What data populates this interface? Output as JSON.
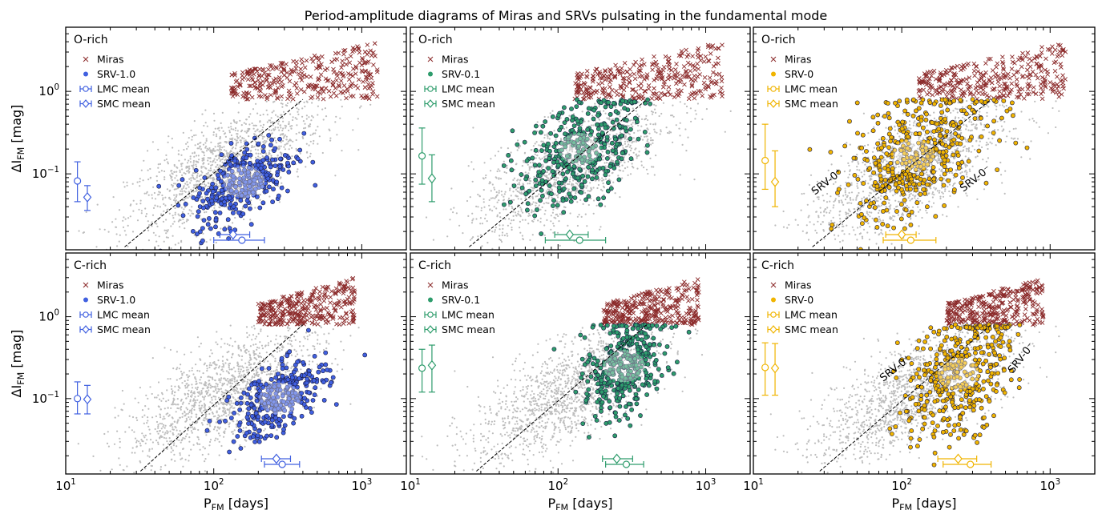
{
  "figure": {
    "title": "Period-amplitude diagrams of Miras and SRVs pulsating in the fundamental mode",
    "xlabel_main": "P",
    "xlabel_sub": "FM",
    "xlabel_unit": " [days]",
    "ylabel_main": "ΔI",
    "ylabel_sub": "FM",
    "ylabel_unit": " [mag]"
  },
  "colors": {
    "mira": "#8b2a2a",
    "background_stars": "#bdbdbd",
    "srv_1_0": "#4060e0",
    "srv_0_1": "#2e9c6c",
    "srv_0": "#f0b400",
    "trend_line": "#000000"
  },
  "chart_data": [
    {
      "type": "scatter",
      "row": "O-rich",
      "panel_label": "O-rich",
      "group": "SRV-1.0",
      "xscale": "log",
      "yscale": "log",
      "xlim": [
        10,
        2000
      ],
      "ylim": [
        0.012,
        6
      ],
      "xticks": [
        {
          "v": 10,
          "base": "10",
          "exp": "1"
        },
        {
          "v": 100,
          "base": "10",
          "exp": "2"
        },
        {
          "v": 1000,
          "base": "10",
          "exp": "3"
        }
      ],
      "yticks": [
        {
          "v": 0.1,
          "base": "10",
          "exp": "−1"
        },
        {
          "v": 1,
          "base": "10",
          "exp": "0"
        }
      ],
      "legend": [
        "Miras",
        "SRV-1.0",
        "LMC mean",
        "SMC mean"
      ],
      "mira_cloud": {
        "x_range": [
          130,
          1300
        ],
        "y_range": [
          0.8,
          4
        ]
      },
      "srv_cloud": {
        "center": [
          160,
          0.08
        ],
        "spread": [
          0.17,
          0.22
        ],
        "count": 330
      },
      "trend_line": [
        [
          25,
          0.013
        ],
        [
          400,
          0.8
        ]
      ],
      "lmc_mean": {
        "x": 155,
        "x_err": [
          100,
          220
        ],
        "y": 0.082,
        "y_err": [
          0.046,
          0.14
        ],
        "y_marker_x": 12
      },
      "smc_mean": {
        "x": 135,
        "x_err": [
          110,
          175
        ],
        "y": 0.052,
        "y_err": [
          0.036,
          0.072
        ],
        "y_marker_x": 14
      }
    },
    {
      "type": "scatter",
      "row": "O-rich",
      "panel_label": "O-rich",
      "group": "SRV-0.1",
      "xscale": "log",
      "yscale": "log",
      "xlim": [
        10,
        2000
      ],
      "ylim": [
        0.012,
        6
      ],
      "xticks": [
        {
          "v": 10,
          "base": "10",
          "exp": "1"
        },
        {
          "v": 100,
          "base": "10",
          "exp": "2"
        },
        {
          "v": 1000,
          "base": "10",
          "exp": "3"
        }
      ],
      "yticks": [
        {
          "v": 0.1,
          "base": "10",
          "exp": "−1"
        },
        {
          "v": 1,
          "base": "10",
          "exp": "0"
        }
      ],
      "legend": [
        "Miras",
        "SRV-0.1",
        "LMC mean",
        "SMC mean"
      ],
      "mira_cloud": {
        "x_range": [
          130,
          1300
        ],
        "y_range": [
          0.8,
          4
        ]
      },
      "srv_cloud": {
        "center": [
          140,
          0.2
        ],
        "spread": [
          0.2,
          0.32
        ],
        "count": 380
      },
      "trend_line": [
        [
          25,
          0.013
        ],
        [
          400,
          0.8
        ]
      ],
      "lmc_mean": {
        "x": 140,
        "x_err": [
          82,
          210
        ],
        "y": 0.165,
        "y_err": [
          0.075,
          0.36
        ],
        "y_marker_x": 12
      },
      "smc_mean": {
        "x": 120,
        "x_err": [
          95,
          160
        ],
        "y": 0.088,
        "y_err": [
          0.046,
          0.17
        ],
        "y_marker_x": 14
      }
    },
    {
      "type": "scatter",
      "row": "O-rich",
      "panel_label": "O-rich",
      "group": "SRV-0",
      "xscale": "log",
      "yscale": "log",
      "xlim": [
        10,
        2000
      ],
      "ylim": [
        0.012,
        6
      ],
      "xticks": [
        {
          "v": 10,
          "base": "10",
          "exp": "1"
        },
        {
          "v": 100,
          "base": "10",
          "exp": "2"
        },
        {
          "v": 1000,
          "base": "10",
          "exp": "3"
        }
      ],
      "yticks": [
        {
          "v": 0.1,
          "base": "10",
          "exp": "−1"
        },
        {
          "v": 1,
          "base": "10",
          "exp": "0"
        }
      ],
      "legend": [
        "Miras",
        "SRV-0",
        "LMC mean",
        "SMC mean"
      ],
      "mira_cloud": {
        "x_range": [
          130,
          1300
        ],
        "y_range": [
          0.8,
          4
        ]
      },
      "srv_cloud": {
        "center": [
          120,
          0.17
        ],
        "spread": [
          0.24,
          0.35
        ],
        "count": 450
      },
      "trend_line": [
        [
          25,
          0.013
        ],
        [
          400,
          0.8
        ]
      ],
      "annotations": [
        {
          "text": "SRV-0⁺",
          "x": 26,
          "y": 0.055,
          "angle": -38
        },
        {
          "text": "SRV-0⁻",
          "x": 260,
          "y": 0.06,
          "angle": -38
        }
      ],
      "lmc_mean": {
        "x": 115,
        "x_err": [
          75,
          170
        ],
        "y": 0.145,
        "y_err": [
          0.065,
          0.4
        ],
        "y_marker_x": 12
      },
      "smc_mean": {
        "x": 100,
        "x_err": [
          78,
          125
        ],
        "y": 0.08,
        "y_err": [
          0.04,
          0.19
        ],
        "y_marker_x": 14
      }
    },
    {
      "type": "scatter",
      "row": "C-rich",
      "panel_label": "C-rich",
      "group": "SRV-1.0",
      "xscale": "log",
      "yscale": "log",
      "xlim": [
        10,
        2000
      ],
      "ylim": [
        0.012,
        6
      ],
      "xticks": [
        {
          "v": 10,
          "base": "10",
          "exp": "1"
        },
        {
          "v": 100,
          "base": "10",
          "exp": "2"
        },
        {
          "v": 1000,
          "base": "10",
          "exp": "3"
        }
      ],
      "yticks": [
        {
          "v": 0.1,
          "base": "10",
          "exp": "−1"
        },
        {
          "v": 1,
          "base": "10",
          "exp": "0"
        }
      ],
      "legend": [
        "Miras",
        "SRV-1.0",
        "LMC mean",
        "SMC mean"
      ],
      "mira_cloud": {
        "x_range": [
          200,
          900
        ],
        "y_range": [
          0.8,
          3
        ]
      },
      "srv_cloud": {
        "center": [
          280,
          0.1
        ],
        "spread": [
          0.16,
          0.2
        ],
        "count": 330
      },
      "trend_line": [
        [
          32,
          0.013
        ],
        [
          400,
          0.8
        ]
      ],
      "lmc_mean": {
        "x": 290,
        "x_err": [
          220,
          380
        ],
        "y": 0.1,
        "y_err": [
          0.065,
          0.16
        ],
        "y_marker_x": 12
      },
      "smc_mean": {
        "x": 265,
        "x_err": [
          210,
          330
        ],
        "y": 0.098,
        "y_err": [
          0.065,
          0.145
        ],
        "y_marker_x": 14
      }
    },
    {
      "type": "scatter",
      "row": "C-rich",
      "panel_label": "C-rich",
      "group": "SRV-0.1",
      "xscale": "log",
      "yscale": "log",
      "xlim": [
        10,
        2000
      ],
      "ylim": [
        0.012,
        6
      ],
      "xticks": [
        {
          "v": 10,
          "base": "10",
          "exp": "1"
        },
        {
          "v": 100,
          "base": "10",
          "exp": "2"
        },
        {
          "v": 1000,
          "base": "10",
          "exp": "3"
        }
      ],
      "yticks": [
        {
          "v": 0.1,
          "base": "10",
          "exp": "−1"
        },
        {
          "v": 1,
          "base": "10",
          "exp": "0"
        }
      ],
      "legend": [
        "Miras",
        "SRV-0.1",
        "LMC mean",
        "SMC mean"
      ],
      "mira_cloud": {
        "x_range": [
          200,
          900
        ],
        "y_range": [
          0.8,
          3
        ]
      },
      "srv_cloud": {
        "center": [
          280,
          0.25
        ],
        "spread": [
          0.14,
          0.3
        ],
        "count": 380
      },
      "trend_line": [
        [
          28,
          0.013
        ],
        [
          400,
          0.8
        ]
      ],
      "lmc_mean": {
        "x": 290,
        "x_err": [
          210,
          380
        ],
        "y": 0.235,
        "y_err": [
          0.12,
          0.4
        ],
        "y_marker_x": 12
      },
      "smc_mean": {
        "x": 250,
        "x_err": [
          200,
          320
        ],
        "y": 0.255,
        "y_err": [
          0.12,
          0.45
        ],
        "y_marker_x": 14
      }
    },
    {
      "type": "scatter",
      "row": "C-rich",
      "panel_label": "C-rich",
      "group": "SRV-0",
      "xscale": "log",
      "yscale": "log",
      "xlim": [
        10,
        2000
      ],
      "ylim": [
        0.012,
        6
      ],
      "xticks": [
        {
          "v": 10,
          "base": "10",
          "exp": "1"
        },
        {
          "v": 100,
          "base": "10",
          "exp": "2"
        },
        {
          "v": 1000,
          "base": "10",
          "exp": "3"
        }
      ],
      "yticks": [
        {
          "v": 0.1,
          "base": "10",
          "exp": "−1"
        },
        {
          "v": 1,
          "base": "10",
          "exp": "0"
        }
      ],
      "legend": [
        "Miras",
        "SRV-0",
        "LMC mean",
        "SMC mean"
      ],
      "mira_cloud": {
        "x_range": [
          200,
          900
        ],
        "y_range": [
          0.8,
          3
        ]
      },
      "srv_cloud": {
        "center": [
          240,
          0.2
        ],
        "spread": [
          0.18,
          0.38
        ],
        "count": 420
      },
      "trend_line": [
        [
          28,
          0.013
        ],
        [
          400,
          0.8
        ]
      ],
      "annotations": [
        {
          "text": "SRV-0⁺",
          "x": 75,
          "y": 0.16,
          "angle": -38
        },
        {
          "text": "SRV-0⁻",
          "x": 560,
          "y": 0.2,
          "angle": -52
        }
      ],
      "lmc_mean": {
        "x": 290,
        "x_err": [
          190,
          400
        ],
        "y": 0.24,
        "y_err": [
          0.11,
          0.48
        ],
        "y_marker_x": 12
      },
      "smc_mean": {
        "x": 240,
        "x_err": [
          175,
          320
        ],
        "y": 0.235,
        "y_err": [
          0.11,
          0.47
        ],
        "y_marker_x": 14
      }
    }
  ]
}
